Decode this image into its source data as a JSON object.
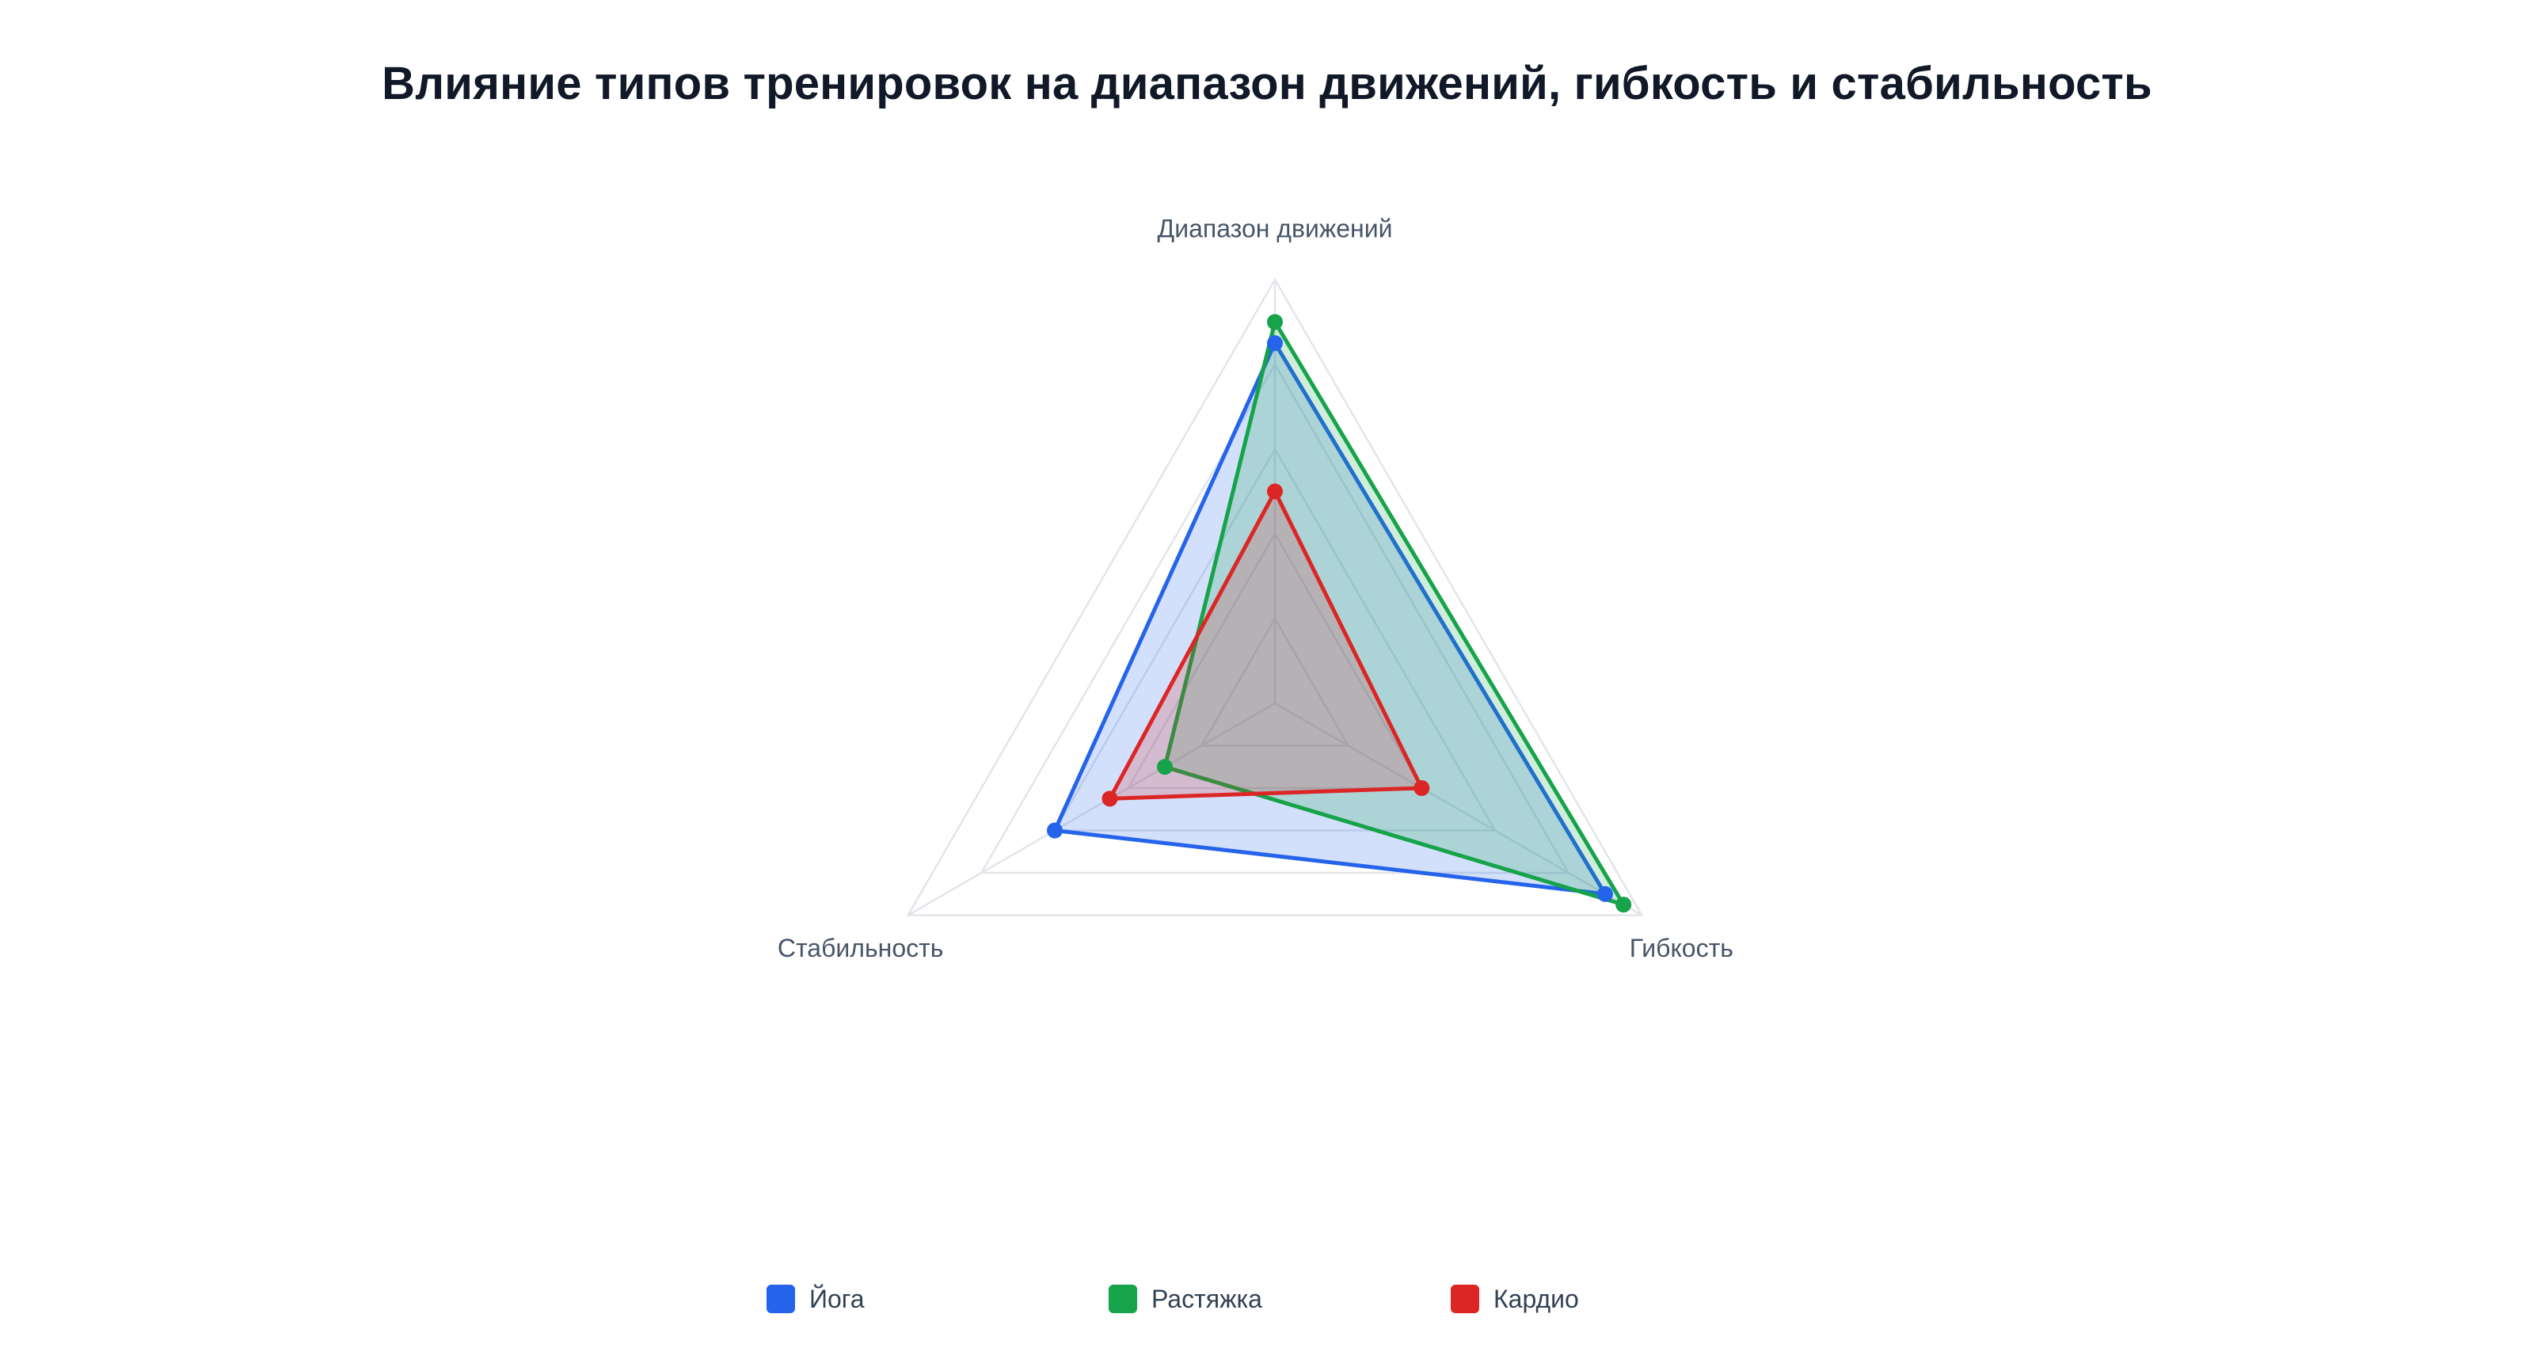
{
  "chart_data": {
    "type": "radar",
    "title": "Влияние типов тренировок на диапазон движений, гибкость и стабильность",
    "axes": [
      "Диапазон движений",
      "Гибкость",
      "Стабильность"
    ],
    "range": [
      0,
      10
    ],
    "grid": true,
    "grid_levels": [
      2,
      4,
      6,
      8,
      10
    ],
    "legend_position": "bottom",
    "series": [
      {
        "name": "Йога",
        "values": [
          8.5,
          9.0,
          6.0
        ],
        "color": "#2563eb"
      },
      {
        "name": "Растяжка",
        "values": [
          9.0,
          9.5,
          3.0
        ],
        "color": "#16a34a"
      },
      {
        "name": "Кардио",
        "values": [
          5.0,
          4.0,
          4.5
        ],
        "color": "#dc2626"
      }
    ]
  }
}
